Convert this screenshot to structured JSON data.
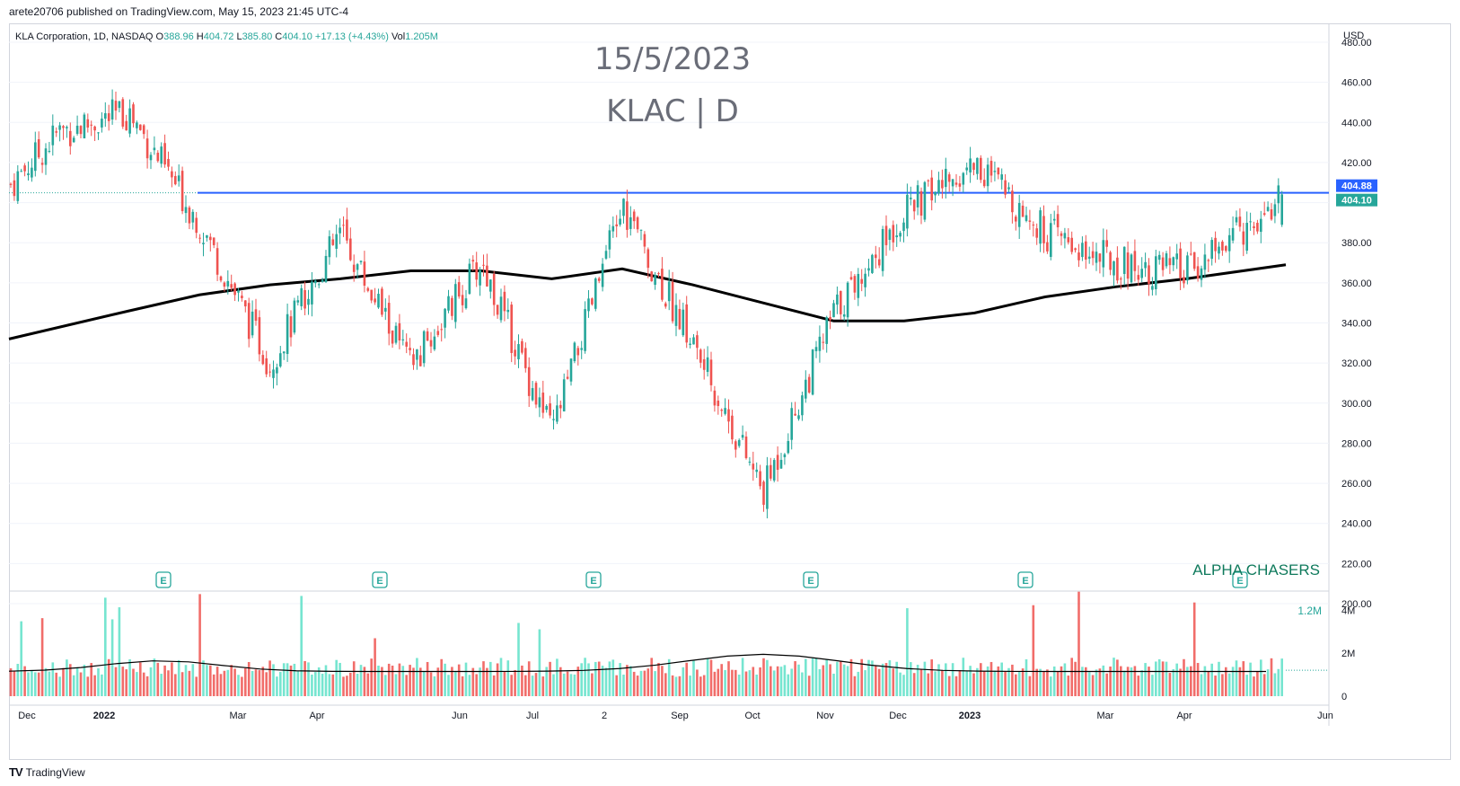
{
  "header": {
    "published": "arete20706 published on TradingView.com, May 15, 2023 21:45 UTC-4"
  },
  "symbol_bar": {
    "name": "KLA Corporation, 1D, NASDAQ",
    "open_label": "O",
    "open": "388.96",
    "high_label": "H",
    "high": "404.72",
    "low_label": "L",
    "low": "385.80",
    "close_label": "C",
    "close": "404.10",
    "change": "+17.13 (+4.43%)",
    "vol_label": "Vol",
    "vol": "1.205M"
  },
  "watermark": {
    "date": "15/5/2023",
    "ticker": "KLAC | D"
  },
  "brand_text": "ALPHA CHASERS",
  "footer": {
    "logo_text": "TradingView"
  },
  "colors": {
    "up": "#26a69a",
    "down": "#ef5350",
    "vol_up": "#5ee0c8",
    "vol_down": "#ef5350",
    "resistance": "#2962ff",
    "ma": "#000000",
    "brand": "#0f7a5c",
    "grid": "#f0f3fa"
  },
  "chart_data": {
    "type": "candlestick",
    "title": "KLA Corporation, 1D, NASDAQ",
    "currency_label": "USD",
    "y_ticks": [
      "480.00",
      "460.00",
      "440.00",
      "420.00",
      "400.00",
      "380.00",
      "360.00",
      "340.00",
      "320.00",
      "300.00",
      "280.00",
      "260.00",
      "240.00",
      "220.00",
      "200.00"
    ],
    "ylim": [
      200,
      480
    ],
    "x_labels": [
      "Dec",
      "2022",
      "Mar",
      "Apr",
      "Jun",
      "Jul",
      "2",
      "Sep",
      "Oct",
      "Nov",
      "Dec",
      "2023",
      "Mar",
      "Apr",
      "Jun"
    ],
    "resistance_level": 404.88,
    "last_price": 404.1,
    "price_labels": [
      "404.88",
      "404.10"
    ],
    "ma_200": [
      {
        "month": "Nov 2021",
        "value": 332
      },
      {
        "month": "Jan 2022",
        "value": 346
      },
      {
        "month": "Feb 2022",
        "value": 354
      },
      {
        "month": "Mar 2022",
        "value": 359
      },
      {
        "month": "Apr 2022",
        "value": 362
      },
      {
        "month": "May 2022",
        "value": 366
      },
      {
        "month": "Jun 2022",
        "value": 366
      },
      {
        "month": "Jul 2022",
        "value": 362
      },
      {
        "month": "Aug 2022",
        "value": 367
      },
      {
        "month": "Sep 2022",
        "value": 359
      },
      {
        "month": "Oct 2022",
        "value": 350
      },
      {
        "month": "Nov 2022",
        "value": 341
      },
      {
        "month": "Dec 2022",
        "value": 341
      },
      {
        "month": "Jan 2023",
        "value": 345
      },
      {
        "month": "Feb 2023",
        "value": 353
      },
      {
        "month": "Mar 2023",
        "value": 358
      },
      {
        "month": "Apr 2023",
        "value": 362
      },
      {
        "month": "May 2023",
        "value": 369
      }
    ],
    "price_path": [
      {
        "month": "Nov 2021",
        "close": 408
      },
      {
        "month": "Dec 2021",
        "close": 435
      },
      {
        "month": "Jan 2022",
        "close": 445
      },
      {
        "month": "Feb 2022",
        "close": 390
      },
      {
        "month": "Mar 2022",
        "close": 320
      },
      {
        "month": "Apr 2022",
        "close": 385
      },
      {
        "month": "May 2022",
        "close": 318
      },
      {
        "month": "Jun 2022",
        "close": 370
      },
      {
        "month": "Jul 2022",
        "close": 285
      },
      {
        "month": "Aug 2022",
        "close": 398
      },
      {
        "month": "Sep 2022",
        "close": 330
      },
      {
        "month": "Oct 2022",
        "close": 255
      },
      {
        "month": "Nov 2022",
        "close": 345
      },
      {
        "month": "Dec 2022",
        "close": 395
      },
      {
        "month": "Jan 2023",
        "close": 420
      },
      {
        "month": "Feb 2023",
        "close": 385
      },
      {
        "month": "Mar 2023",
        "close": 370
      },
      {
        "month": "Apr 2023",
        "close": 365
      },
      {
        "month": "May 2023",
        "close": 404.1
      }
    ],
    "earnings_markers": [
      "E",
      "E",
      "E",
      "E",
      "E",
      "E"
    ],
    "volume": {
      "y_ticks": [
        "4M",
        "2M",
        "0"
      ],
      "last_label": "1.2M",
      "last_value_millions": 1.205
    }
  }
}
